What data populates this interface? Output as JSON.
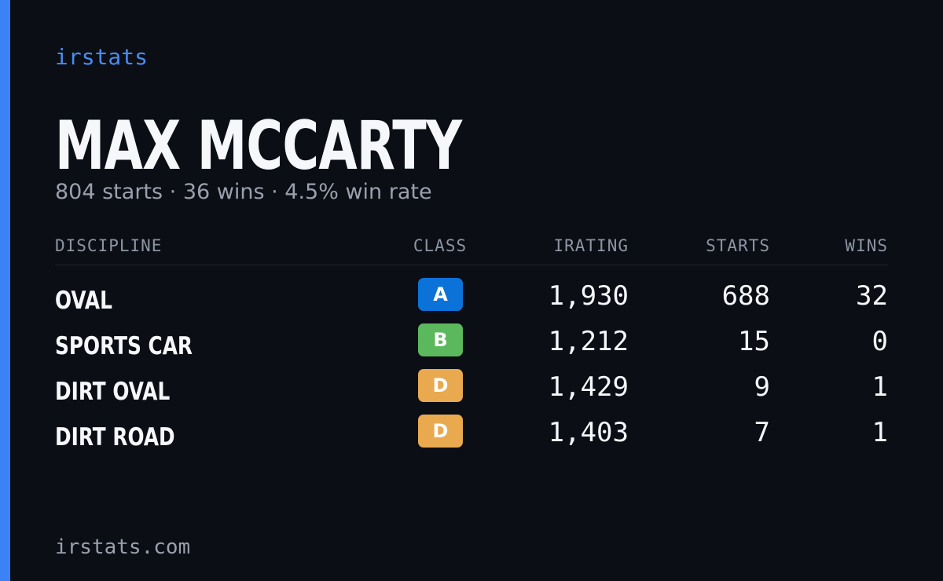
{
  "brand": "irstats",
  "driver": {
    "name": "MAX MCCARTY",
    "summary": "804 starts · 36 wins · 4.5% win rate"
  },
  "table": {
    "headers": [
      "DISCIPLINE",
      "CLASS",
      "IRATING",
      "STARTS",
      "WINS"
    ],
    "rows": [
      {
        "discipline": "OVAL",
        "class": "A",
        "class_color": "#0b72d9",
        "irating": "1,930",
        "starts": "688",
        "wins": "32"
      },
      {
        "discipline": "SPORTS CAR",
        "class": "B",
        "class_color": "#5cb85c",
        "irating": "1,212",
        "starts": "15",
        "wins": "0"
      },
      {
        "discipline": "DIRT OVAL",
        "class": "D",
        "class_color": "#e8a94f",
        "irating": "1,429",
        "starts": "9",
        "wins": "1"
      },
      {
        "discipline": "DIRT ROAD",
        "class": "D",
        "class_color": "#e8a94f",
        "irating": "1,403",
        "starts": "7",
        "wins": "1"
      }
    ]
  },
  "footer": "irstats.com"
}
